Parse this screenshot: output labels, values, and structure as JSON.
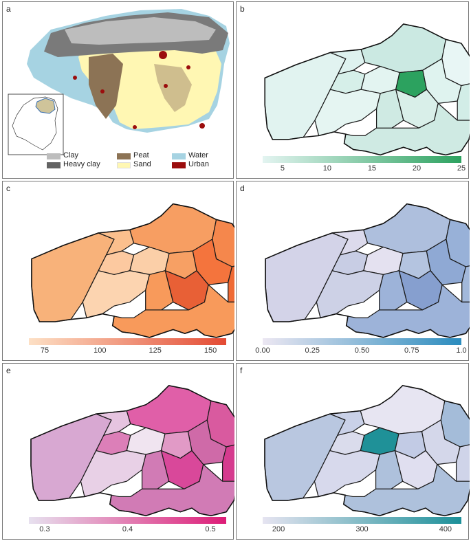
{
  "panels": [
    {
      "letter": "a"
    },
    {
      "letter": "b",
      "legend": {
        "ticks": [
          "5",
          "10",
          "15",
          "20",
          "25"
        ],
        "color_from": "#e3f4f1",
        "color_to": "#2ca25f"
      }
    },
    {
      "letter": "c",
      "legend": {
        "ticks": [
          "75",
          "100",
          "125",
          "150"
        ],
        "color_from": "#fde0c5",
        "color_to": "#e34a33"
      }
    },
    {
      "letter": "d",
      "legend": {
        "ticks": [
          "0.00",
          "0.25",
          "0.50",
          "0.75",
          "1.0"
        ],
        "color_from": "#ece7f2",
        "color_to": "#2b8cbe"
      }
    },
    {
      "letter": "e",
      "legend": {
        "ticks": [
          "0.3",
          "0.4",
          "0.5"
        ],
        "color_from": "#e7e1ef",
        "color_to": "#dd1c77"
      }
    },
    {
      "letter": "f",
      "legend": {
        "ticks": [
          "200",
          "300",
          "400"
        ],
        "color_from": "#e6e4f1",
        "color_to": "#1c9099"
      }
    }
  ],
  "soil_legend": [
    {
      "label": "Clay",
      "color": "#bdbdbd"
    },
    {
      "label": "Heavy clay",
      "color": "#636363"
    },
    {
      "label": "Peat",
      "color": "#8c7355"
    },
    {
      "label": "Sand",
      "color": "#fff7b3"
    },
    {
      "label": "Water",
      "color": "#a6d3e2"
    },
    {
      "label": "Urban",
      "color": "#9b0d0d"
    }
  ],
  "map_colors": {
    "b": [
      "#e1f3f0",
      "#def2ef",
      "#d6efe9",
      "#cbe9e2",
      "#e8f6f5",
      "#dff3ef",
      "#d2ede7",
      "#e3f4f1",
      "#2ca25f",
      "#d9efe9",
      "#e5f5f2",
      "#cfeae3"
    ],
    "c": [
      "#f8b27a",
      "#fbbf8d",
      "#fcc9a0",
      "#f79e62",
      "#f5874c",
      "#f4743d",
      "#ef6a35",
      "#fbcfa8",
      "#f7a064",
      "#e86036",
      "#fcd4b0",
      "#f89a5b"
    ],
    "d": [
      "#d3d3e8",
      "#dcdaec",
      "#c8cde4",
      "#aebfdd",
      "#98b1d8",
      "#8fa9d4",
      "#a2b8da",
      "#e4e1f0",
      "#b4c4e0",
      "#869fcf",
      "#cdd1e6",
      "#9db3d9"
    ],
    "e": [
      "#d8a8d2",
      "#e6c4e0",
      "#dc7fb8",
      "#e05fa8",
      "#d95a9f",
      "#cf6aa8",
      "#d53b8e",
      "#f0e4f0",
      "#e19ac6",
      "#d9489a",
      "#e8d0e6",
      "#d17bb5"
    ],
    "f": [
      "#b9c7e0",
      "#c9d1e8",
      "#dadcec",
      "#e7e5f2",
      "#a4bcd9",
      "#d4d7ea",
      "#cfd4e9",
      "#1f9198",
      "#c2cbe5",
      "#e0dff0",
      "#d7d9ec",
      "#aec1dc"
    ]
  }
}
